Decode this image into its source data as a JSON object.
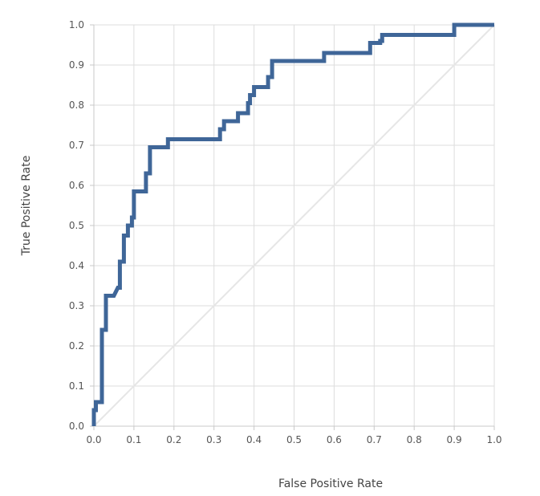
{
  "chart_data": {
    "type": "line",
    "xlabel": "False Positive Rate",
    "ylabel": "True Positive Rate",
    "xlim": [
      0,
      1
    ],
    "ylim": [
      0,
      1
    ],
    "x_ticks": [
      "0.0",
      "0.1",
      "0.2",
      "0.3",
      "0.4",
      "0.5",
      "0.6",
      "0.7",
      "0.8",
      "0.9",
      "1.0"
    ],
    "y_ticks": [
      "0.0",
      "0.1",
      "0.2",
      "0.3",
      "0.4",
      "0.5",
      "0.6",
      "0.7",
      "0.8",
      "0.9",
      "1.0"
    ],
    "grid": true,
    "legend": "none",
    "colors": {
      "roc": "#3f6698",
      "diagonal": "#e6e6e6",
      "grid": "#dddddd",
      "axis": "#c8c8c8"
    },
    "series": [
      {
        "kind": "roc-curve",
        "x": [
          0,
          0,
          0.005,
          0.005,
          0.02,
          0.02,
          0.02,
          0.02,
          0.03,
          0.03,
          0.05,
          0.06,
          0.065,
          0.065,
          0.075,
          0.075,
          0.085,
          0.085,
          0.095,
          0.095,
          0.1,
          0.1,
          0.13,
          0.13,
          0.14,
          0.14,
          0.185,
          0.185,
          0.315,
          0.315,
          0.325,
          0.325,
          0.36,
          0.36,
          0.385,
          0.385,
          0.39,
          0.39,
          0.4,
          0.4,
          0.435,
          0.435,
          0.445,
          0.445,
          0.575,
          0.575,
          0.69,
          0.69,
          0.715,
          0.715,
          0.72,
          0.72,
          0.9,
          0.9,
          1.0
        ],
        "y": [
          0,
          0.04,
          0.04,
          0.06,
          0.06,
          0.24,
          0.24,
          0.24,
          0.24,
          0.325,
          0.325,
          0.345,
          0.345,
          0.41,
          0.41,
          0.475,
          0.475,
          0.5,
          0.5,
          0.52,
          0.52,
          0.585,
          0.585,
          0.63,
          0.63,
          0.695,
          0.695,
          0.715,
          0.715,
          0.74,
          0.74,
          0.76,
          0.76,
          0.78,
          0.78,
          0.805,
          0.805,
          0.825,
          0.825,
          0.845,
          0.845,
          0.87,
          0.87,
          0.91,
          0.91,
          0.93,
          0.93,
          0.955,
          0.955,
          0.96,
          0.96,
          0.975,
          0.975,
          1.0,
          1.0
        ]
      },
      {
        "kind": "reference-diagonal",
        "x": [
          0,
          1
        ],
        "y": [
          0,
          1
        ]
      }
    ]
  }
}
